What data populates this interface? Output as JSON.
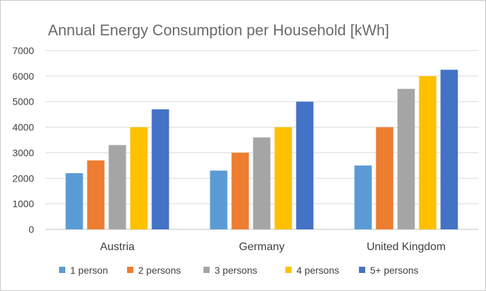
{
  "chart_data": {
    "type": "bar",
    "title": "Annual Energy Consumption per Household [kWh]",
    "xlabel": "",
    "ylabel": "",
    "categories": [
      "Austria",
      "Germany",
      "United Kingdom"
    ],
    "series": [
      {
        "name": "1 person",
        "color": "#5b9bd5",
        "values": [
          2200,
          2300,
          2500
        ]
      },
      {
        "name": "2 persons",
        "color": "#ed7d31",
        "values": [
          2700,
          3000,
          4000
        ]
      },
      {
        "name": "3 persons",
        "color": "#a5a5a5",
        "values": [
          3300,
          3600,
          5500
        ]
      },
      {
        "name": "4 persons",
        "color": "#ffc000",
        "values": [
          4000,
          4000,
          6000
        ]
      },
      {
        "name": "5+ persons",
        "color": "#4472c4",
        "values": [
          4700,
          5000,
          6250
        ]
      }
    ],
    "ylim": [
      0,
      7000
    ],
    "yticks": [
      0,
      1000,
      2000,
      3000,
      4000,
      5000,
      6000,
      7000
    ],
    "grid": true,
    "legend_position": "bottom"
  }
}
